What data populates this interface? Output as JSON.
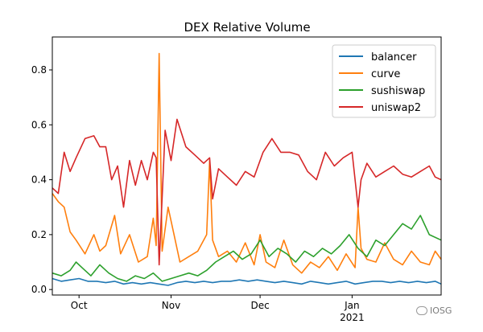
{
  "chart_data": {
    "type": "line",
    "title": "DEX Relative Volume",
    "xlabel": "",
    "ylabel": "",
    "x_start": "2020-09-22",
    "x_end": "2021-01-31",
    "x_ticks": [
      {
        "date": "2020-10-01",
        "label": "Oct",
        "sublabel": ""
      },
      {
        "date": "2020-11-01",
        "label": "Nov",
        "sublabel": ""
      },
      {
        "date": "2020-12-01",
        "label": "Dec",
        "sublabel": ""
      },
      {
        "date": "2021-01-01",
        "label": "Jan",
        "sublabel": "2021"
      }
    ],
    "ylim": [
      -0.02,
      0.92
    ],
    "y_ticks": [
      0.0,
      0.2,
      0.4,
      0.6,
      0.8
    ],
    "y_tick_labels": [
      "0.0",
      "0.2",
      "0.4",
      "0.6",
      "0.8"
    ],
    "grid": false,
    "legend_position": "top-right",
    "series": [
      {
        "name": "balancer",
        "color": "#1f77b4",
        "x": [
          "2020-09-22",
          "2020-09-25",
          "2020-09-28",
          "2020-10-01",
          "2020-10-04",
          "2020-10-07",
          "2020-10-10",
          "2020-10-13",
          "2020-10-16",
          "2020-10-19",
          "2020-10-22",
          "2020-10-25",
          "2020-10-28",
          "2020-10-31",
          "2020-11-03",
          "2020-11-06",
          "2020-11-09",
          "2020-11-12",
          "2020-11-15",
          "2020-11-18",
          "2020-11-21",
          "2020-11-24",
          "2020-11-27",
          "2020-11-30",
          "2020-12-03",
          "2020-12-06",
          "2020-12-09",
          "2020-12-12",
          "2020-12-15",
          "2020-12-18",
          "2020-12-21",
          "2020-12-24",
          "2020-12-27",
          "2020-12-30",
          "2021-01-02",
          "2021-01-05",
          "2021-01-08",
          "2021-01-11",
          "2021-01-14",
          "2021-01-17",
          "2021-01-20",
          "2021-01-23",
          "2021-01-26",
          "2021-01-29",
          "2021-01-31"
        ],
        "values": [
          0.04,
          0.03,
          0.035,
          0.04,
          0.03,
          0.03,
          0.025,
          0.03,
          0.02,
          0.025,
          0.02,
          0.025,
          0.02,
          0.015,
          0.025,
          0.03,
          0.025,
          0.03,
          0.025,
          0.03,
          0.03,
          0.035,
          0.03,
          0.035,
          0.03,
          0.025,
          0.03,
          0.025,
          0.02,
          0.03,
          0.025,
          0.02,
          0.025,
          0.03,
          0.02,
          0.025,
          0.03,
          0.03,
          0.025,
          0.03,
          0.025,
          0.03,
          0.025,
          0.03,
          0.02
        ]
      },
      {
        "name": "curve",
        "color": "#ff7f0e",
        "x": [
          "2020-09-22",
          "2020-09-24",
          "2020-09-26",
          "2020-09-28",
          "2020-09-30",
          "2020-10-03",
          "2020-10-06",
          "2020-10-08",
          "2020-10-10",
          "2020-10-13",
          "2020-10-15",
          "2020-10-18",
          "2020-10-21",
          "2020-10-24",
          "2020-10-26",
          "2020-10-27",
          "2020-10-28",
          "2020-10-29",
          "2020-10-31",
          "2020-11-02",
          "2020-11-04",
          "2020-11-07",
          "2020-11-10",
          "2020-11-13",
          "2020-11-14",
          "2020-11-15",
          "2020-11-17",
          "2020-11-20",
          "2020-11-23",
          "2020-11-26",
          "2020-11-29",
          "2020-12-01",
          "2020-12-03",
          "2020-12-06",
          "2020-12-09",
          "2020-12-12",
          "2020-12-15",
          "2020-12-18",
          "2020-12-21",
          "2020-12-24",
          "2020-12-27",
          "2020-12-30",
          "2021-01-02",
          "2021-01-03",
          "2021-01-04",
          "2021-01-06",
          "2021-01-09",
          "2021-01-12",
          "2021-01-15",
          "2021-01-18",
          "2021-01-21",
          "2021-01-24",
          "2021-01-27",
          "2021-01-29",
          "2021-01-31"
        ],
        "values": [
          0.35,
          0.32,
          0.3,
          0.21,
          0.18,
          0.13,
          0.2,
          0.14,
          0.16,
          0.27,
          0.13,
          0.2,
          0.1,
          0.12,
          0.26,
          0.16,
          0.86,
          0.14,
          0.3,
          0.2,
          0.1,
          0.12,
          0.14,
          0.2,
          0.47,
          0.18,
          0.12,
          0.14,
          0.1,
          0.17,
          0.09,
          0.2,
          0.1,
          0.08,
          0.18,
          0.09,
          0.06,
          0.1,
          0.08,
          0.12,
          0.07,
          0.13,
          0.08,
          0.3,
          0.15,
          0.11,
          0.1,
          0.17,
          0.11,
          0.09,
          0.14,
          0.1,
          0.09,
          0.14,
          0.11
        ]
      },
      {
        "name": "sushiswap",
        "color": "#2ca02c",
        "x": [
          "2020-09-22",
          "2020-09-25",
          "2020-09-28",
          "2020-09-30",
          "2020-10-02",
          "2020-10-05",
          "2020-10-08",
          "2020-10-11",
          "2020-10-14",
          "2020-10-17",
          "2020-10-20",
          "2020-10-23",
          "2020-10-26",
          "2020-10-29",
          "2020-11-01",
          "2020-11-04",
          "2020-11-07",
          "2020-11-10",
          "2020-11-13",
          "2020-11-16",
          "2020-11-19",
          "2020-11-22",
          "2020-11-25",
          "2020-11-28",
          "2020-12-01",
          "2020-12-04",
          "2020-12-07",
          "2020-12-10",
          "2020-12-13",
          "2020-12-16",
          "2020-12-19",
          "2020-12-22",
          "2020-12-25",
          "2020-12-28",
          "2020-12-31",
          "2021-01-03",
          "2021-01-06",
          "2021-01-09",
          "2021-01-12",
          "2021-01-15",
          "2021-01-18",
          "2021-01-21",
          "2021-01-24",
          "2021-01-27",
          "2021-01-31"
        ],
        "values": [
          0.06,
          0.05,
          0.07,
          0.1,
          0.08,
          0.05,
          0.09,
          0.06,
          0.04,
          0.03,
          0.05,
          0.04,
          0.06,
          0.03,
          0.04,
          0.05,
          0.06,
          0.05,
          0.07,
          0.1,
          0.12,
          0.14,
          0.11,
          0.13,
          0.18,
          0.12,
          0.15,
          0.13,
          0.1,
          0.14,
          0.12,
          0.15,
          0.13,
          0.16,
          0.2,
          0.15,
          0.12,
          0.18,
          0.16,
          0.2,
          0.24,
          0.22,
          0.27,
          0.2,
          0.18
        ]
      },
      {
        "name": "uniswap2",
        "color": "#d62728",
        "x": [
          "2020-09-22",
          "2020-09-24",
          "2020-09-26",
          "2020-09-28",
          "2020-09-30",
          "2020-10-03",
          "2020-10-06",
          "2020-10-08",
          "2020-10-10",
          "2020-10-12",
          "2020-10-14",
          "2020-10-16",
          "2020-10-18",
          "2020-10-20",
          "2020-10-22",
          "2020-10-24",
          "2020-10-26",
          "2020-10-27",
          "2020-10-28",
          "2020-10-30",
          "2020-11-01",
          "2020-11-03",
          "2020-11-06",
          "2020-11-09",
          "2020-11-12",
          "2020-11-14",
          "2020-11-15",
          "2020-11-17",
          "2020-11-20",
          "2020-11-23",
          "2020-11-26",
          "2020-11-29",
          "2020-12-02",
          "2020-12-05",
          "2020-12-08",
          "2020-12-11",
          "2020-12-14",
          "2020-12-17",
          "2020-12-20",
          "2020-12-23",
          "2020-12-26",
          "2020-12-29",
          "2021-01-01",
          "2021-01-03",
          "2021-01-04",
          "2021-01-06",
          "2021-01-09",
          "2021-01-12",
          "2021-01-15",
          "2021-01-18",
          "2021-01-21",
          "2021-01-24",
          "2021-01-27",
          "2021-01-29",
          "2021-01-31"
        ],
        "values": [
          0.37,
          0.35,
          0.5,
          0.43,
          0.48,
          0.55,
          0.56,
          0.52,
          0.52,
          0.4,
          0.45,
          0.3,
          0.47,
          0.38,
          0.47,
          0.4,
          0.5,
          0.48,
          0.09,
          0.58,
          0.47,
          0.62,
          0.52,
          0.49,
          0.46,
          0.48,
          0.33,
          0.44,
          0.41,
          0.38,
          0.43,
          0.41,
          0.5,
          0.55,
          0.5,
          0.5,
          0.49,
          0.43,
          0.4,
          0.5,
          0.45,
          0.48,
          0.5,
          0.3,
          0.4,
          0.46,
          0.41,
          0.43,
          0.45,
          0.42,
          0.41,
          0.43,
          0.45,
          0.41,
          0.4
        ]
      }
    ]
  },
  "watermark": {
    "text": "IOSG"
  }
}
